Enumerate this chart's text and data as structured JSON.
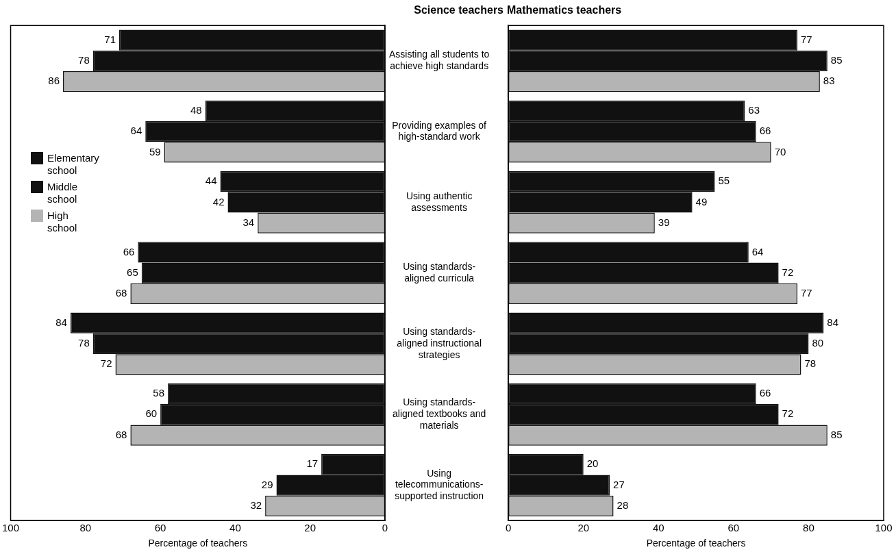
{
  "chart_data": [
    {
      "type": "bar",
      "orientation": "horizontal",
      "title": "Science teachers",
      "xlabel": "Percentage of teachers",
      "categories": [
        "Assisting all students to achieve high standards",
        "Providing examples of high-standard work",
        "Using authentic assessments",
        "Using standards-aligned curricula",
        "Using standards-aligned instructional strategies",
        "Using standards-aligned textbooks and materials",
        "Using telecommunications-supported instruction"
      ],
      "series": [
        {
          "name": "Elementary school",
          "color": "#111111",
          "values": [
            71,
            48,
            44,
            66,
            84,
            58,
            17
          ]
        },
        {
          "name": "Middle school",
          "color": "#111111",
          "values": [
            78,
            64,
            42,
            65,
            78,
            60,
            29
          ]
        },
        {
          "name": "High school",
          "color": "#b4b4b4",
          "values": [
            86,
            59,
            34,
            68,
            72,
            68,
            32
          ]
        }
      ],
      "xlim": [
        100,
        0
      ],
      "xticks": [
        100,
        80,
        60,
        40,
        20,
        0
      ],
      "data_labels": true,
      "legend": "left",
      "grid": false
    },
    {
      "type": "bar",
      "orientation": "horizontal",
      "title": "Mathematics teachers",
      "xlabel": "Percentage of teachers",
      "categories": [
        null,
        null,
        null,
        null,
        null,
        null,
        null
      ],
      "series": [
        {
          "color": "#111111",
          "values": [
            77,
            63,
            55,
            64,
            84,
            66,
            20
          ]
        },
        {
          "color": "#111111",
          "values": [
            85,
            66,
            49,
            72,
            80,
            72,
            27
          ]
        },
        {
          "color": "#b4b4b4",
          "values": [
            83,
            70,
            39,
            77,
            78,
            85,
            28
          ]
        }
      ],
      "xlim": [
        0,
        100
      ],
      "xticks": [
        0,
        20,
        40,
        60,
        80,
        100
      ],
      "data_labels": true,
      "tick_labels": "x",
      "grid": false
    }
  ]
}
